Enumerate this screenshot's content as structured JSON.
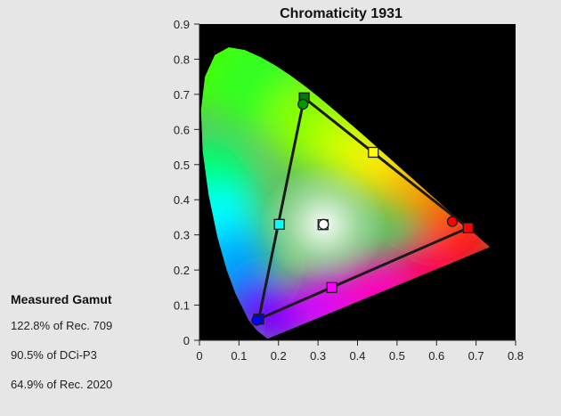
{
  "chart_data": {
    "type": "scatter",
    "title": "Chromaticity 1931",
    "xlabel": "",
    "ylabel": "",
    "xlim": [
      0,
      0.8
    ],
    "ylim": [
      0,
      0.9
    ],
    "x_ticks": [
      "0",
      "0.1",
      "0.2",
      "0.3",
      "0.4",
      "0.5",
      "0.6",
      "0.7",
      "0.8"
    ],
    "y_ticks": [
      "0",
      "0.1",
      "0.2",
      "0.3",
      "0.4",
      "0.5",
      "0.6",
      "0.7",
      "0.8",
      "0.9"
    ],
    "grid": false,
    "target_points": [
      {
        "x": 0.68,
        "y": 0.32,
        "color": "#ff0000"
      },
      {
        "x": 0.265,
        "y": 0.69,
        "color": "#007a00"
      },
      {
        "x": 0.15,
        "y": 0.06,
        "color": "#0000ff"
      },
      {
        "x": 0.44,
        "y": 0.535,
        "color": "#ffff00"
      },
      {
        "x": 0.202,
        "y": 0.33,
        "color": "#00ffff"
      },
      {
        "x": 0.335,
        "y": 0.15,
        "color": "#ff00ff"
      },
      {
        "x": 0.3127,
        "y": 0.329,
        "color": "#ffffff"
      }
    ],
    "measured_points": [
      {
        "x": 0.64,
        "y": 0.338,
        "color": "#ff0000"
      },
      {
        "x": 0.262,
        "y": 0.672,
        "color": "#009900"
      },
      {
        "x": 0.145,
        "y": 0.057,
        "color": "#0000ff"
      },
      {
        "x": 0.314,
        "y": 0.33,
        "color": "#ffffff"
      }
    ],
    "gamut_triangle": [
      {
        "x": 0.68,
        "y": 0.32
      },
      {
        "x": 0.265,
        "y": 0.69
      },
      {
        "x": 0.15,
        "y": 0.06
      }
    ]
  },
  "gamut_panel": {
    "title": "Measured Gamut",
    "lines": [
      "122.8% of Rec. 709",
      "90.5% of DCi-P3",
      "64.9% of Rec. 2020"
    ]
  },
  "colors": {
    "background": "#e6e6e6",
    "plot_background": "#000000",
    "triangle_line": "#1a1a1a"
  }
}
